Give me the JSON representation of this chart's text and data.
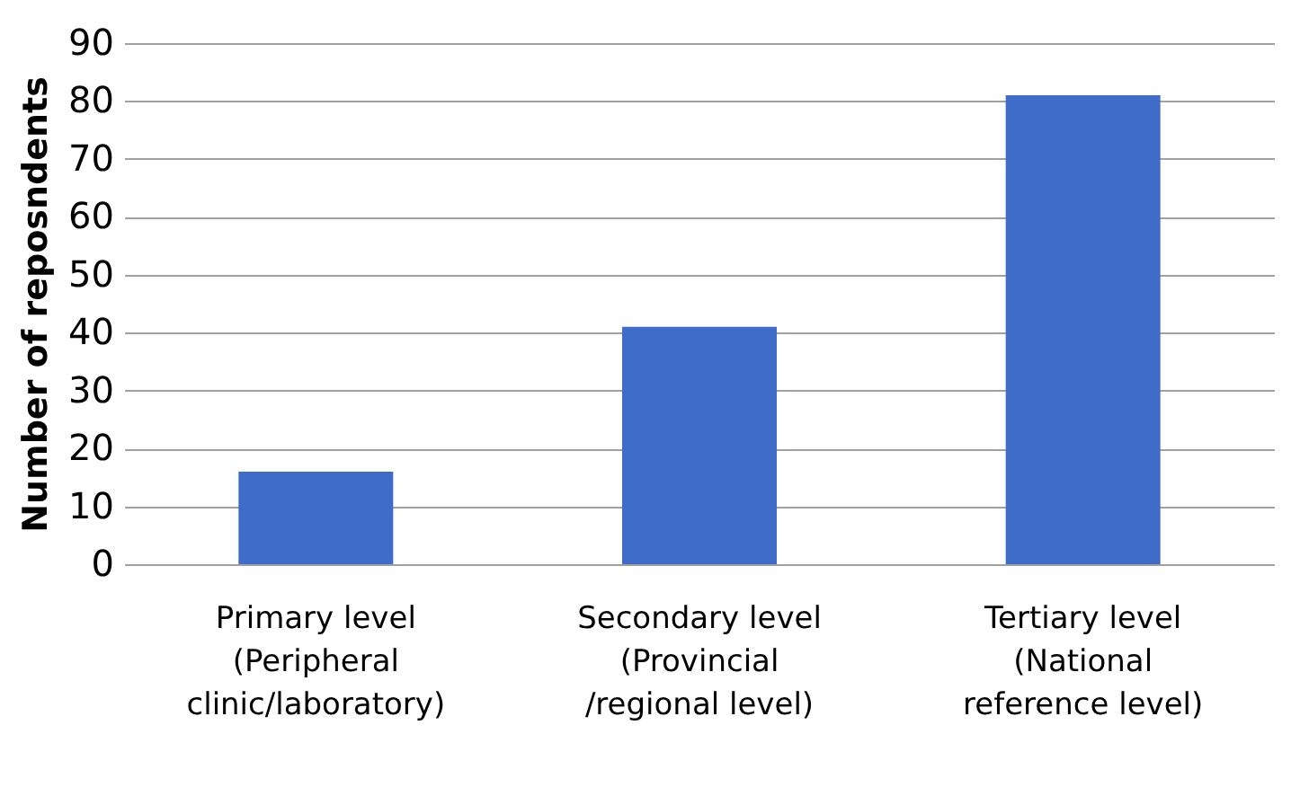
{
  "chart_data": {
    "type": "bar",
    "ylabel": "Number of reposndents",
    "categories": [
      "Primary level\n(Peripheral\nclinic/laboratory)",
      "Secondary level\n(Provincial\n/regional level)",
      "Tertiary level\n(National\nreference level)"
    ],
    "values": [
      16,
      41,
      81
    ],
    "color": "#3f6cc8",
    "ylim": [
      0,
      90
    ],
    "yticks": [
      0,
      10,
      20,
      30,
      40,
      50,
      60,
      70,
      80,
      90
    ],
    "grid": "y"
  }
}
